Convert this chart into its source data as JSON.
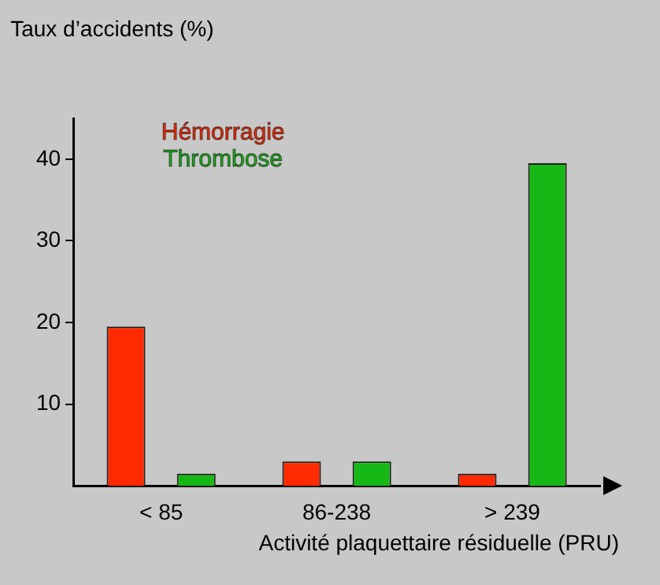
{
  "chart_data": {
    "type": "bar",
    "ylabel": "Taux d’accidents (%)",
    "xlabel": "Activité plaquettaire résiduelle (PRU)",
    "categories": [
      "< 85",
      "86-238",
      "> 239"
    ],
    "series": [
      {
        "name": "Hémorragie",
        "color": "#ff2a00",
        "values": [
          19.5,
          3,
          1.5
        ]
      },
      {
        "name": "Thrombose",
        "color": "#16b816",
        "values": [
          1.5,
          3,
          39.5
        ]
      }
    ],
    "ylim": [
      0,
      45
    ],
    "yticks": [
      10,
      20,
      30,
      40
    ],
    "grid": false,
    "legend": "top left"
  }
}
